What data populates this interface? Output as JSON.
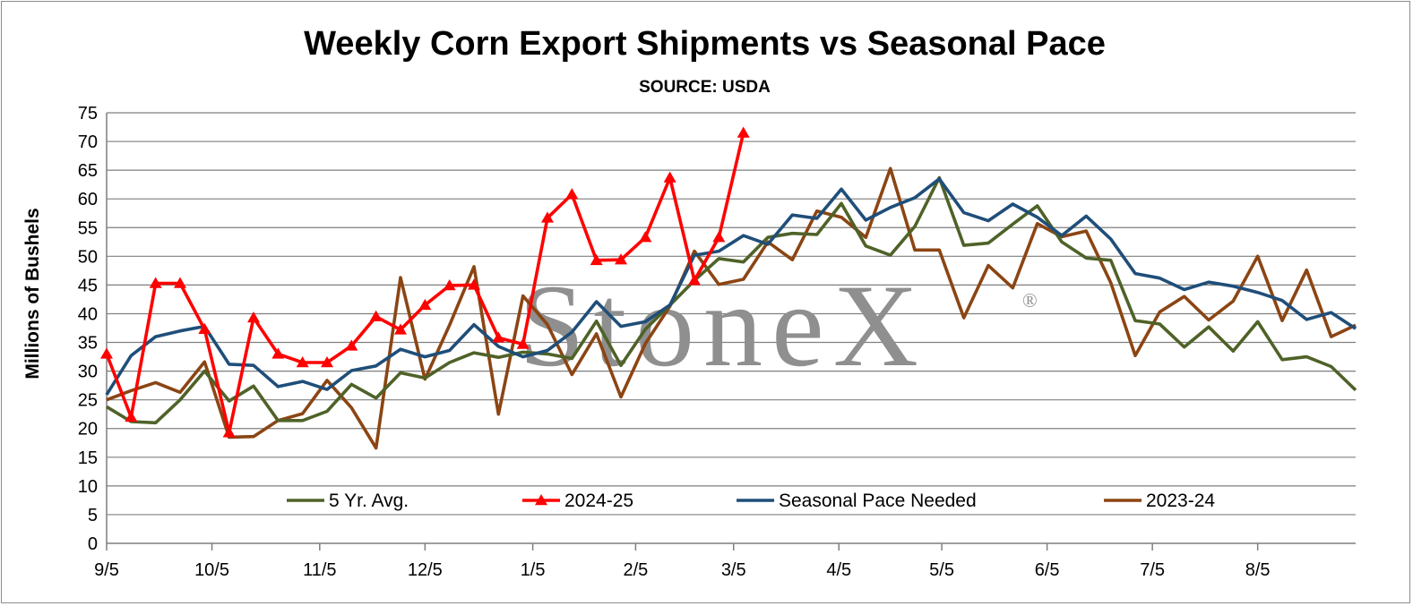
{
  "chart_data": {
    "type": "line",
    "title": "Weekly Corn Export Shipments vs Seasonal Pace",
    "subtitle": "SOURCE: USDA",
    "ylabel": "Millions of Bushels",
    "xlabel": "",
    "ylim": [
      0,
      75
    ],
    "yticks": [
      0,
      5,
      10,
      15,
      20,
      25,
      30,
      35,
      40,
      45,
      50,
      55,
      60,
      65,
      70,
      75
    ],
    "grid": true,
    "legend_position": "bottom-inside",
    "watermark": "StoneX",
    "xtick_labels": [
      "9/5",
      "10/5",
      "11/5",
      "12/5",
      "1/5",
      "2/5",
      "3/5",
      "4/5",
      "5/5",
      "6/5",
      "7/5",
      "8/5"
    ],
    "xtick_weeks": [
      0,
      4.3,
      8.7,
      13,
      17.4,
      21.6,
      25.6,
      29.9,
      34.1,
      38.4,
      42.7,
      47
    ],
    "series": [
      {
        "name": "5 Yr. Avg.",
        "color": "#4f6228",
        "marker": "none",
        "values": [
          23.8,
          21.2,
          21,
          25,
          30,
          24.8,
          27.4,
          21.4,
          21.4,
          23,
          27.7,
          25.3,
          29.7,
          28.8,
          31.5,
          33.2,
          32.4,
          33.3,
          33,
          32.2,
          38.7,
          31,
          37.3,
          41.5,
          45.8,
          49.6,
          49,
          53.3,
          54,
          53.8,
          59.2,
          51.8,
          50.2,
          55.2,
          63.7,
          51.9,
          52.3,
          55.6,
          58.8,
          52.5,
          49.7,
          49.3,
          38.8,
          38.2,
          34.2,
          37.7,
          33.5,
          38.6,
          32,
          32.5,
          30.8,
          26.7
        ]
      },
      {
        "name": "2024-25",
        "color": "#ff0000",
        "marker": "triangle",
        "values": [
          33,
          22,
          45.3,
          45.3,
          37.3,
          19.3,
          39.3,
          33,
          31.5,
          31.5,
          34.4,
          39.5,
          37.2,
          41.5,
          44.9,
          45,
          35.8,
          34.7,
          56.7,
          60.8,
          49.3,
          49.4,
          53.3,
          63.7,
          45.8,
          53.3,
          71.5
        ]
      },
      {
        "name": "Seasonal Pace Needed",
        "color": "#1f4e79",
        "marker": "none",
        "values": [
          25.9,
          32.7,
          36,
          37,
          37.8,
          31.2,
          31,
          27.3,
          28.2,
          26.8,
          30.1,
          30.9,
          33.8,
          32.5,
          33.6,
          38.1,
          34.3,
          32.5,
          33.6,
          36.8,
          42.1,
          37.8,
          38.6,
          41.5,
          50.2,
          50.9,
          53.6,
          52.1,
          57.2,
          56.6,
          61.7,
          56.3,
          58.5,
          60.2,
          63.5,
          57.6,
          56.2,
          59.1,
          56.8,
          53.6,
          57,
          53,
          47,
          46.2,
          44.2,
          45.5,
          44.8,
          43.7,
          42.3,
          39,
          40.2,
          37.4
        ]
      },
      {
        "name": "2023-24",
        "color": "#8b4513",
        "marker": "none",
        "values": [
          25,
          26.6,
          28,
          26.3,
          31.6,
          18.5,
          18.6,
          21.4,
          22.6,
          28.4,
          23.6,
          16.6,
          46.3,
          28.6,
          38,
          48.2,
          22.5,
          43.1,
          38.1,
          29.4,
          36.5,
          25.5,
          34.8,
          41.3,
          50.9,
          45.1,
          46,
          52.5,
          49.4,
          57.9,
          56.8,
          53.3,
          65.3,
          51.1,
          51.1,
          39.3,
          48.4,
          44.5,
          55.7,
          53.4,
          54.4,
          45.4,
          32.7,
          40.3,
          43,
          38.9,
          42.2,
          50,
          38.8,
          47.6,
          36,
          38
        ]
      }
    ]
  }
}
